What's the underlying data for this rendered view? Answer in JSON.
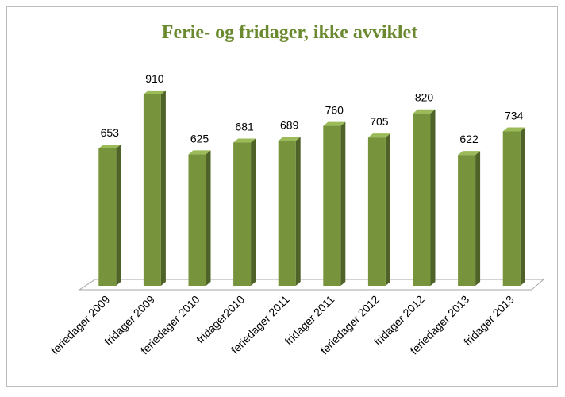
{
  "chart_data": {
    "type": "bar",
    "title": "Ferie- og fridager, ikke avviklet",
    "categories": [
      "feriedager 2009",
      "fridager 2009",
      "feriedager 2010",
      "fridager2010",
      "feriedager 2011",
      "fridager 2011",
      "feriedager 2012",
      "fridager 2012",
      "feriedager 2013",
      "fridager 2013"
    ],
    "values": [
      653,
      910,
      625,
      681,
      689,
      760,
      705,
      820,
      622,
      734
    ],
    "color": "#77933c",
    "ylim": [
      0,
      1000
    ]
  }
}
